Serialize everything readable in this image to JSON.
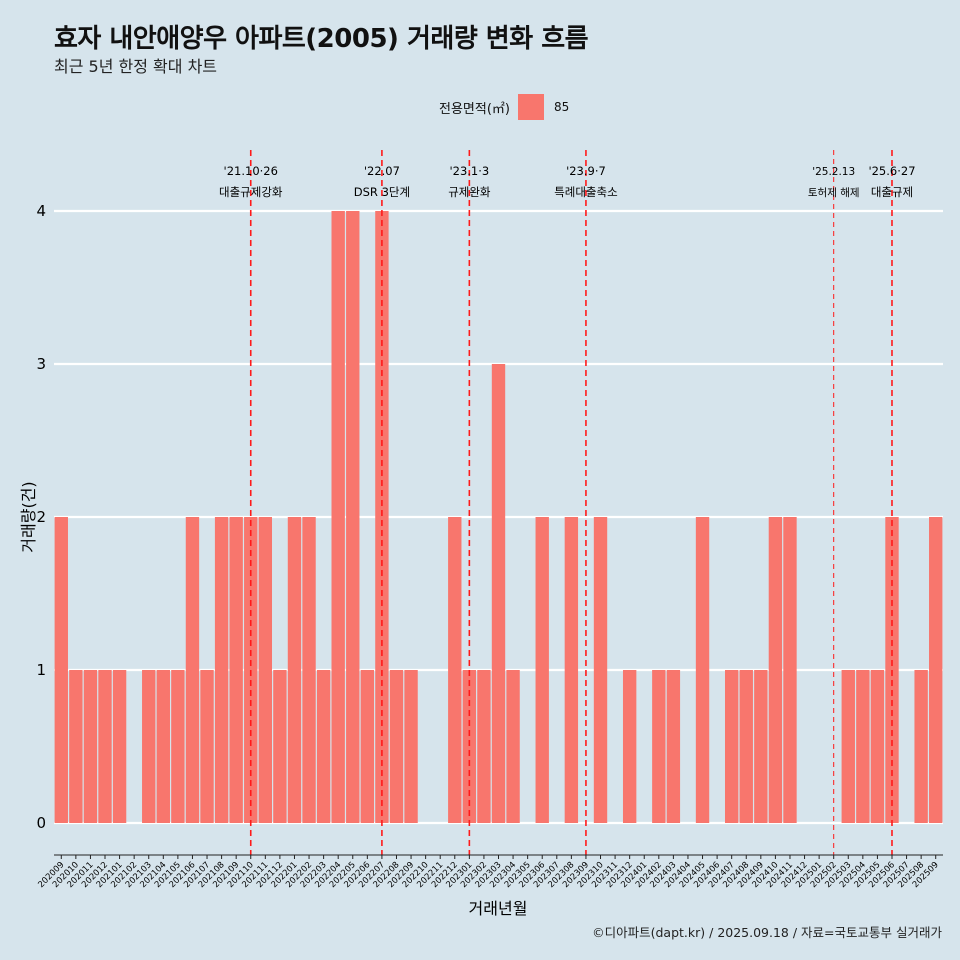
{
  "title": "효자 내안애양우 아파트(2005) 거래량 변화 흐름",
  "subtitle": "최근 5년 한정 확대 차트",
  "legend": {
    "title": "전용면적(㎡)",
    "label": "85",
    "color": "#f8766d"
  },
  "caption": "©디아파트(dapt.kr) / 2025.09.18 / 자료=국토교통부 실거래가",
  "chart_data": {
    "type": "bar",
    "xlabel": "거래년월",
    "ylabel": "거래량(건)",
    "ylim": [
      0,
      4
    ],
    "yticks": [
      "0",
      "1",
      "2",
      "3",
      "4"
    ],
    "grid": true,
    "legend_position": "top",
    "categories": [
      "202009",
      "202010",
      "202011",
      "202012",
      "202101",
      "202102",
      "202103",
      "202104",
      "202105",
      "202106",
      "202107",
      "202108",
      "202109",
      "202110",
      "202111",
      "202112",
      "202201",
      "202202",
      "202203",
      "202204",
      "202205",
      "202206",
      "202207",
      "202208",
      "202209",
      "202210",
      "202211",
      "202212",
      "202301",
      "202302",
      "202303",
      "202304",
      "202305",
      "202306",
      "202307",
      "202308",
      "202309",
      "202310",
      "202311",
      "202312",
      "202401",
      "202402",
      "202403",
      "202404",
      "202405",
      "202406",
      "202407",
      "202408",
      "202409",
      "202410",
      "202411",
      "202412",
      "202501",
      "202502",
      "202503",
      "202504",
      "202505",
      "202506",
      "202507",
      "202508",
      "202509"
    ],
    "series": [
      {
        "name": "85",
        "values": [
          2,
          1,
          1,
          1,
          1,
          0,
          1,
          1,
          1,
          2,
          1,
          2,
          2,
          2,
          2,
          1,
          2,
          2,
          1,
          4,
          4,
          1,
          4,
          1,
          1,
          0,
          0,
          2,
          1,
          1,
          3,
          1,
          0,
          2,
          0,
          2,
          0,
          2,
          0,
          1,
          0,
          1,
          1,
          0,
          2,
          0,
          1,
          1,
          1,
          2,
          2,
          0,
          0,
          0,
          1,
          1,
          1,
          2,
          0,
          1,
          2
        ]
      }
    ],
    "annotations": [
      {
        "at": "202110",
        "date": "'21.10·26",
        "text": "대출규제강화",
        "style": "dashed"
      },
      {
        "at": "202207",
        "date": "'22.07",
        "text": "DSR 3단계",
        "style": "dashed"
      },
      {
        "at": "202301",
        "date": "'23.1·3",
        "text": "규제완화",
        "style": "dashed"
      },
      {
        "at": "202309",
        "date": "'23.9·7",
        "text": "특례대출축소",
        "style": "dashed"
      },
      {
        "at": "202502",
        "date": "'25.2.13",
        "text": "토허제 해제",
        "style": "thin-dashed"
      },
      {
        "at": "202506",
        "date": "'25.6·27",
        "text": "대출규제",
        "style": "dashed"
      }
    ]
  }
}
